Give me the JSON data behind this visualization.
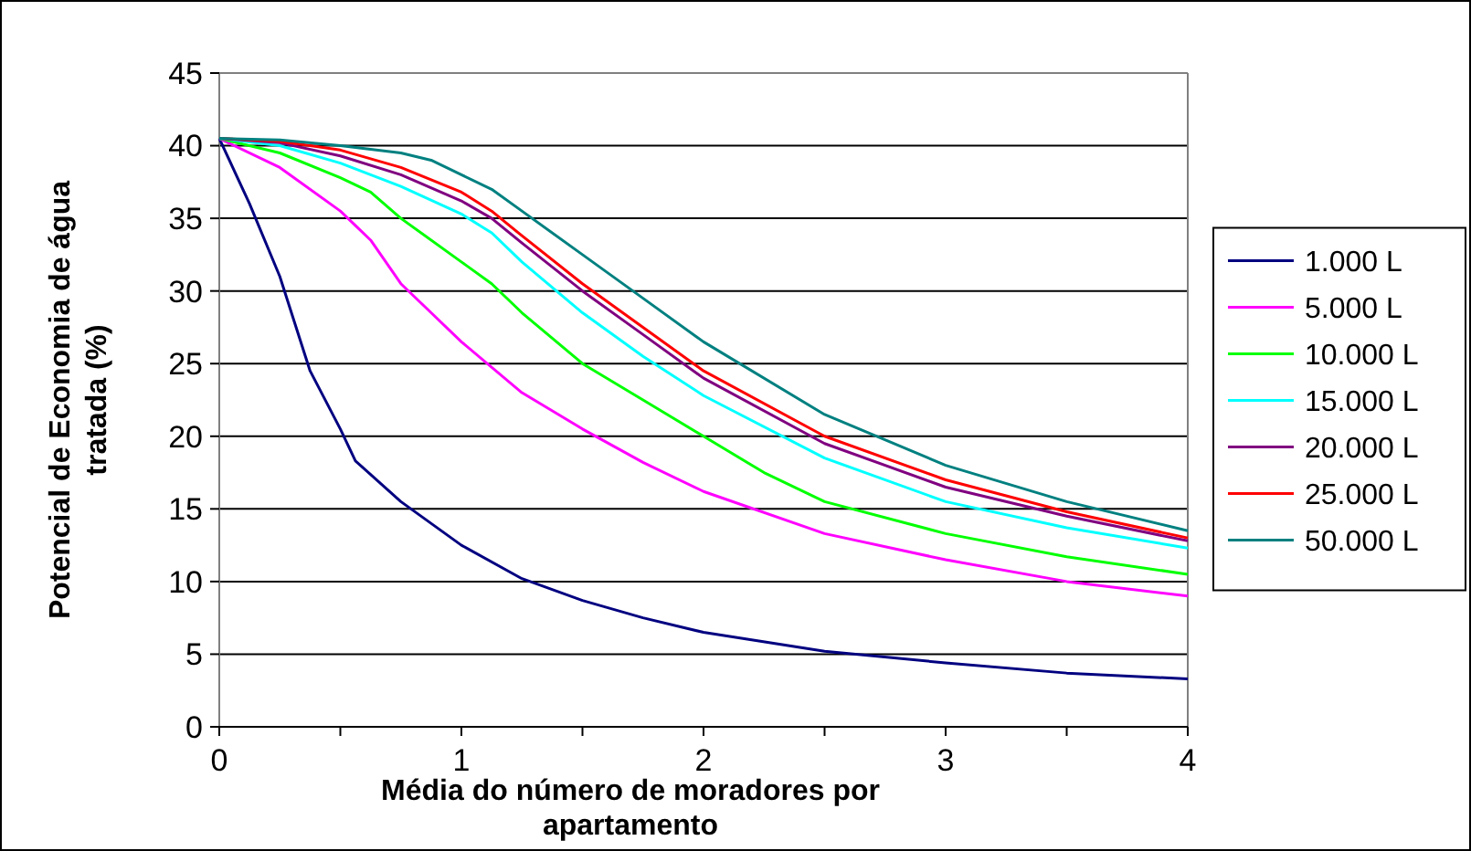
{
  "chart_data": {
    "type": "line",
    "xlabel": "Média do número de moradores por\napartamento",
    "ylabel": "Potencial de Economia de água\ntratada (%)",
    "xlim": [
      0,
      4
    ],
    "ylim": [
      0,
      45
    ],
    "xticks": [
      0,
      {
        "value": 0.5,
        "label": null
      },
      1,
      {
        "value": 1.5,
        "label": null
      },
      2,
      {
        "value": 2.5,
        "label": null
      },
      3,
      {
        "value": 3.5,
        "label": null
      },
      4
    ],
    "yticks": [
      0,
      5,
      10,
      15,
      20,
      25,
      30,
      35,
      40,
      45
    ],
    "grid": "y",
    "legend": "right",
    "marker": "none",
    "line_style": "solid",
    "series": [
      {
        "name": "1.000 L",
        "color": "#000080",
        "x": [
          0,
          0.125,
          0.25,
          0.375,
          0.5,
          0.5625,
          0.75,
          1,
          1.25,
          1.5,
          1.75,
          2,
          2.5,
          3,
          3.5,
          4
        ],
        "values": [
          40.5,
          36,
          31,
          24.5,
          20.5,
          18.3,
          15.5,
          12.5,
          10.2,
          8.7,
          7.5,
          6.5,
          5.2,
          4.4,
          3.7,
          3.3
        ]
      },
      {
        "name": "5.000 L",
        "color": "#ff00ff",
        "x": [
          0,
          0.25,
          0.5,
          0.625,
          0.75,
          0.875,
          1,
          1.25,
          1.5,
          1.75,
          2,
          2.5,
          3,
          3.5,
          4
        ],
        "values": [
          40.5,
          38.5,
          35.5,
          33.5,
          30.5,
          28.5,
          26.5,
          23,
          20.5,
          18.2,
          16.2,
          13.3,
          11.5,
          10,
          9
        ]
      },
      {
        "name": "10.000 L",
        "color": "#00ff00",
        "x": [
          0,
          0.25,
          0.5,
          0.625,
          0.75,
          1,
          1.125,
          1.25,
          1.5,
          1.75,
          2,
          2.25,
          2.5,
          3,
          3.5,
          4
        ],
        "values": [
          40.5,
          39.5,
          37.8,
          36.8,
          35,
          32,
          30.5,
          28.5,
          25,
          22.5,
          20,
          17.5,
          15.5,
          13.3,
          11.7,
          10.5
        ]
      },
      {
        "name": "15.000 L",
        "color": "#00ffff",
        "x": [
          0,
          0.25,
          0.5,
          0.75,
          1,
          1.125,
          1.25,
          1.5,
          1.75,
          2,
          2.5,
          3,
          3.5,
          4
        ],
        "values": [
          40.5,
          40,
          38.8,
          37.2,
          35.3,
          34,
          32,
          28.5,
          25.5,
          22.8,
          18.5,
          15.5,
          13.7,
          12.3
        ]
      },
      {
        "name": "20.000 L",
        "color": "#800080",
        "x": [
          0,
          0.25,
          0.5,
          0.75,
          1,
          1.125,
          1.25,
          1.5,
          1.75,
          2,
          2.5,
          3,
          3.5,
          4
        ],
        "values": [
          40.5,
          40.2,
          39.3,
          38,
          36.2,
          35,
          33.3,
          30,
          27,
          24,
          19.5,
          16.5,
          14.5,
          12.8
        ]
      },
      {
        "name": "25.000 L",
        "color": "#ff0000",
        "x": [
          0,
          0.25,
          0.5,
          0.75,
          1,
          1.125,
          1.25,
          1.5,
          1.75,
          2,
          2.5,
          3,
          3.5,
          4
        ],
        "values": [
          40.5,
          40.3,
          39.7,
          38.5,
          36.8,
          35.5,
          33.8,
          30.5,
          27.5,
          24.5,
          20,
          17,
          14.8,
          13
        ]
      },
      {
        "name": "50.000 L",
        "color": "#008080",
        "x": [
          0,
          0.25,
          0.5,
          0.75,
          0.875,
          1,
          1.125,
          1.25,
          1.5,
          1.75,
          2,
          2.5,
          3,
          3.5,
          4
        ],
        "values": [
          40.5,
          40.4,
          40,
          39.5,
          39,
          38,
          37,
          35.5,
          32.5,
          29.5,
          26.5,
          21.5,
          18,
          15.5,
          13.5
        ]
      }
    ]
  }
}
